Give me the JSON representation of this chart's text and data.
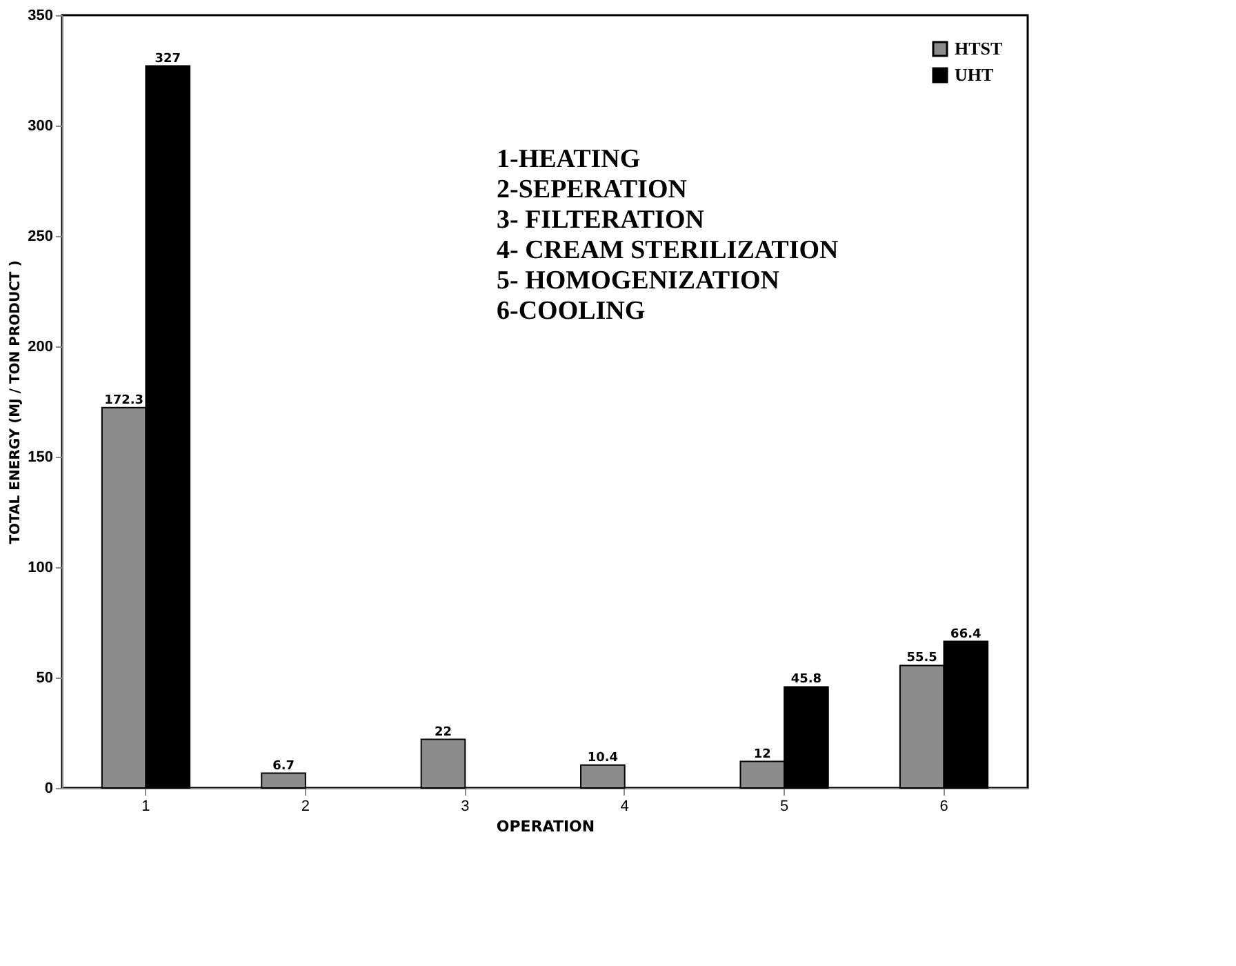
{
  "chart_data": {
    "type": "bar",
    "xlabel": "OPERATION",
    "ylabel": "TOTAL ENERGY (MJ / TON PRODUCT )",
    "categories": [
      "1",
      "2",
      "3",
      "4",
      "5",
      "6"
    ],
    "series": [
      {
        "name": "HTST",
        "color": "#8c8c8c",
        "values": [
          172.3,
          6.7,
          22,
          10.4,
          12,
          55.5
        ],
        "value_labels": [
          "172.3",
          "6.7",
          "22",
          "10.4",
          "12",
          "55.5"
        ]
      },
      {
        "name": "UHT",
        "color": "#000000",
        "values": [
          327,
          null,
          null,
          null,
          45.8,
          66.4
        ],
        "value_labels": [
          "327",
          null,
          null,
          null,
          "45.8",
          "66.4"
        ]
      }
    ],
    "ylim": [
      0,
      350
    ],
    "yticks": [
      0,
      50,
      100,
      150,
      200,
      250,
      300,
      350
    ],
    "legend": "top right",
    "data_labels": true,
    "grid": false,
    "annotations": [
      "1-HEATING",
      "2-SEPERATION",
      "3- FILTERATION",
      "4- CREAM STERILIZATION",
      "5- HOMOGENIZATION",
      "6-COOLING"
    ]
  }
}
